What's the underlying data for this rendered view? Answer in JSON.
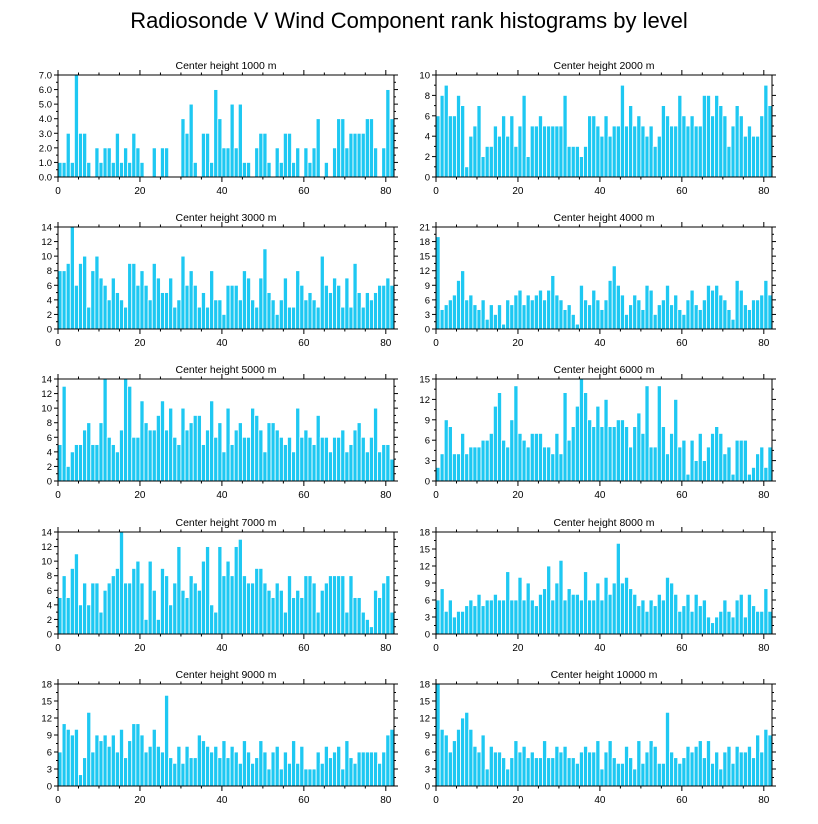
{
  "title": "Radiosonde V Wind Component rank histograms by level",
  "colors": {
    "bar": "#1ec8f2",
    "bar_edge": "#ffffff",
    "axis": "#000000"
  },
  "chart_data": [
    {
      "type": "bar",
      "title": "Center height 1000 m",
      "xlim": [
        0,
        82
      ],
      "ylim": [
        0,
        7
      ],
      "yticks": [
        0,
        1,
        2,
        3,
        4,
        5,
        6,
        7
      ],
      "ytick_labels": [
        "0.0",
        "1.0",
        "2.0",
        "3.0",
        "4.0",
        "5.0",
        "6.0",
        "7.0"
      ],
      "xticks": [
        0,
        20,
        40,
        60,
        80
      ],
      "values": [
        1,
        1,
        3,
        1,
        7,
        3,
        3,
        1,
        0,
        2,
        1,
        2,
        2,
        1,
        3,
        1,
        2,
        1,
        3,
        2,
        1,
        0,
        0,
        2,
        0,
        2,
        2,
        0,
        0,
        0,
        4,
        3,
        5,
        1,
        0,
        3,
        3,
        1,
        6,
        4,
        2,
        2,
        5,
        2,
        5,
        1,
        1,
        0,
        2,
        3,
        3,
        1,
        0,
        2,
        1,
        3,
        3,
        1,
        2,
        0,
        2,
        1,
        2,
        4,
        0,
        1,
        0,
        2,
        4,
        4,
        2,
        3,
        3,
        3,
        3,
        4,
        4,
        2,
        0,
        2,
        6,
        4
      ]
    },
    {
      "type": "bar",
      "title": "Center height 2000 m",
      "xlim": [
        0,
        82
      ],
      "ylim": [
        0,
        10
      ],
      "yticks": [
        0,
        2,
        4,
        6,
        8,
        10
      ],
      "ytick_labels": [
        "0",
        "2",
        "4",
        "6",
        "8",
        "10"
      ],
      "xticks": [
        0,
        20,
        40,
        60,
        80
      ],
      "values": [
        6,
        8,
        9,
        6,
        6,
        8,
        7,
        1,
        4,
        5,
        7,
        2,
        3,
        3,
        5,
        4,
        6,
        4,
        6,
        3,
        5,
        8,
        2,
        5,
        5,
        6,
        5,
        5,
        5,
        5,
        5,
        8,
        3,
        3,
        3,
        2,
        3,
        6,
        6,
        5,
        4,
        6,
        4,
        5,
        5,
        9,
        5,
        7,
        5,
        6,
        5,
        4,
        5,
        3,
        4,
        7,
        6,
        5,
        5,
        8,
        6,
        5,
        6,
        5,
        5,
        8,
        8,
        6,
        8,
        7,
        6,
        3,
        5,
        7,
        6,
        4,
        5,
        4,
        4,
        6,
        9,
        7
      ]
    },
    {
      "type": "bar",
      "title": "Center height 3000 m",
      "xlim": [
        0,
        82
      ],
      "ylim": [
        0,
        14
      ],
      "yticks": [
        0,
        2,
        4,
        6,
        8,
        10,
        12,
        14
      ],
      "ytick_labels": [
        "0",
        "2",
        "4",
        "6",
        "8",
        "10",
        "12",
        "14"
      ],
      "xticks": [
        0,
        20,
        40,
        60,
        80
      ],
      "values": [
        8,
        8,
        9,
        14,
        6,
        9,
        10,
        3,
        8,
        10,
        7,
        6,
        4,
        7,
        5,
        4,
        3,
        9,
        9,
        6,
        8,
        6,
        4,
        9,
        7,
        5,
        5,
        7,
        3,
        4,
        10,
        6,
        8,
        6,
        3,
        5,
        3,
        8,
        4,
        4,
        2,
        6,
        6,
        6,
        4,
        8,
        7,
        4,
        3,
        7,
        11,
        5,
        4,
        2,
        4,
        7,
        3,
        3,
        8,
        6,
        4,
        5,
        4,
        3,
        10,
        6,
        5,
        7,
        6,
        3,
        7,
        3,
        9,
        5,
        3,
        5,
        4,
        5,
        6,
        6,
        7,
        6
      ]
    },
    {
      "type": "bar",
      "title": "Center height 4000 m",
      "xlim": [
        0,
        82
      ],
      "ylim": [
        0,
        21
      ],
      "yticks": [
        0,
        3,
        6,
        9,
        12,
        15,
        18,
        21
      ],
      "ytick_labels": [
        "0",
        "3",
        "6",
        "9",
        "12",
        "15",
        "18",
        "21"
      ],
      "xticks": [
        0,
        20,
        40,
        60,
        80
      ],
      "values": [
        19,
        4,
        5,
        6,
        7,
        10,
        12,
        6,
        7,
        5,
        4,
        6,
        2,
        5,
        3,
        5,
        1,
        6,
        5,
        7,
        8,
        5,
        7,
        6,
        7,
        8,
        6,
        8,
        11,
        7,
        6,
        4,
        5,
        3,
        1,
        9,
        6,
        5,
        8,
        6,
        4,
        6,
        10,
        13,
        9,
        7,
        3,
        5,
        7,
        6,
        4,
        9,
        8,
        3,
        5,
        6,
        9,
        5,
        7,
        4,
        3,
        6,
        8,
        5,
        4,
        6,
        9,
        8,
        9,
        7,
        6,
        4,
        2,
        10,
        8,
        5,
        4,
        6,
        6,
        7,
        10,
        7
      ]
    },
    {
      "type": "bar",
      "title": "Center height 5000 m",
      "xlim": [
        0,
        82
      ],
      "ylim": [
        0,
        14
      ],
      "yticks": [
        0,
        2,
        4,
        6,
        8,
        10,
        12,
        14
      ],
      "ytick_labels": [
        "0",
        "2",
        "4",
        "6",
        "8",
        "10",
        "12",
        "14"
      ],
      "xticks": [
        0,
        20,
        40,
        60,
        80
      ],
      "values": [
        5,
        13,
        2,
        4,
        5,
        5,
        7,
        8,
        5,
        5,
        8,
        14,
        6,
        5,
        4,
        7,
        14,
        13,
        6,
        6,
        11,
        8,
        7,
        7,
        9,
        11,
        7,
        10,
        6,
        5,
        10,
        7,
        8,
        9,
        9,
        5,
        7,
        11,
        6,
        8,
        4,
        10,
        5,
        7,
        8,
        6,
        6,
        10,
        9,
        7,
        4,
        8,
        8,
        7,
        6,
        5,
        6,
        4,
        10,
        6,
        7,
        6,
        5,
        9,
        6,
        6,
        4,
        6,
        6,
        7,
        4,
        5,
        7,
        8,
        6,
        4,
        6,
        10,
        4,
        5,
        5,
        3
      ]
    },
    {
      "type": "bar",
      "title": "Center height 6000 m",
      "xlim": [
        0,
        82
      ],
      "ylim": [
        0,
        15
      ],
      "yticks": [
        0,
        3,
        6,
        9,
        12,
        15
      ],
      "ytick_labels": [
        "0",
        "3",
        "6",
        "9",
        "12",
        "15"
      ],
      "xticks": [
        0,
        20,
        40,
        60,
        80
      ],
      "values": [
        2,
        4,
        9,
        8,
        4,
        4,
        7,
        4,
        5,
        5,
        5,
        6,
        6,
        7,
        11,
        13,
        6,
        5,
        9,
        14,
        7,
        6,
        5,
        7,
        7,
        7,
        5,
        5,
        4,
        7,
        4,
        13,
        6,
        8,
        11,
        15,
        13,
        9,
        8,
        11,
        8,
        12,
        8,
        8,
        9,
        9,
        8,
        5,
        8,
        10,
        7,
        14,
        5,
        5,
        14,
        8,
        4,
        7,
        12,
        5,
        6,
        1,
        6,
        3,
        7,
        3,
        5,
        7,
        8,
        7,
        4,
        5,
        1,
        6,
        6,
        6,
        1,
        2,
        4,
        5,
        2,
        5
      ]
    },
    {
      "type": "bar",
      "title": "Center height 7000 m",
      "xlim": [
        0,
        82
      ],
      "ylim": [
        0,
        14
      ],
      "yticks": [
        0,
        2,
        4,
        6,
        8,
        10,
        12,
        14
      ],
      "ytick_labels": [
        "0",
        "2",
        "4",
        "6",
        "8",
        "10",
        "12",
        "14"
      ],
      "xticks": [
        0,
        20,
        40,
        60,
        80
      ],
      "values": [
        5,
        8,
        5,
        9,
        11,
        4,
        7,
        4,
        7,
        7,
        3,
        6,
        7,
        8,
        9,
        14,
        7,
        7,
        9,
        10,
        7,
        2,
        10,
        6,
        2,
        9,
        8,
        4,
        7,
        12,
        6,
        5,
        8,
        7,
        6,
        10,
        12,
        4,
        3,
        12,
        8,
        10,
        8,
        12,
        13,
        8,
        7,
        7,
        9,
        9,
        7,
        6,
        5,
        7,
        6,
        3,
        8,
        5,
        6,
        5,
        8,
        8,
        7,
        3,
        6,
        7,
        8,
        8,
        8,
        8,
        3,
        8,
        5,
        5,
        3,
        2,
        1,
        6,
        5,
        7,
        8,
        3
      ]
    },
    {
      "type": "bar",
      "title": "Center height 8000 m",
      "xlim": [
        0,
        82
      ],
      "ylim": [
        0,
        18
      ],
      "yticks": [
        0,
        3,
        6,
        9,
        12,
        15,
        18
      ],
      "ytick_labels": [
        "0",
        "3",
        "6",
        "9",
        "12",
        "15",
        "18"
      ],
      "xticks": [
        0,
        20,
        40,
        60,
        80
      ],
      "values": [
        6,
        8,
        4,
        6,
        3,
        4,
        4,
        5,
        6,
        5,
        7,
        5,
        6,
        6,
        7,
        6,
        6,
        11,
        6,
        6,
        10,
        6,
        9,
        6,
        5,
        7,
        8,
        12,
        6,
        9,
        13,
        6,
        8,
        7,
        7,
        6,
        11,
        6,
        6,
        9,
        6,
        10,
        7,
        9,
        16,
        9,
        10,
        8,
        7,
        5,
        6,
        4,
        6,
        5,
        7,
        6,
        10,
        9,
        7,
        4,
        5,
        7,
        4,
        7,
        5,
        6,
        3,
        2,
        3,
        4,
        6,
        4,
        3,
        6,
        7,
        3,
        7,
        5,
        4,
        4,
        8,
        4
      ]
    },
    {
      "type": "bar",
      "title": "Center height 9000 m",
      "xlim": [
        0,
        82
      ],
      "ylim": [
        0,
        18
      ],
      "yticks": [
        0,
        3,
        6,
        9,
        12,
        15,
        18
      ],
      "ytick_labels": [
        "0",
        "3",
        "6",
        "9",
        "12",
        "15",
        "18"
      ],
      "xticks": [
        0,
        20,
        40,
        60,
        80
      ],
      "values": [
        6,
        11,
        10,
        9,
        10,
        2,
        5,
        13,
        6,
        9,
        8,
        9,
        7,
        9,
        6,
        10,
        5,
        8,
        11,
        11,
        9,
        6,
        7,
        10,
        7,
        6,
        16,
        5,
        4,
        7,
        4,
        7,
        5,
        5,
        9,
        8,
        7,
        6,
        7,
        5,
        8,
        5,
        7,
        6,
        4,
        8,
        6,
        4,
        5,
        8,
        6,
        3,
        6,
        7,
        3,
        6,
        4,
        8,
        4,
        7,
        3,
        3,
        3,
        6,
        4,
        7,
        5,
        6,
        7,
        3,
        8,
        5,
        4,
        6,
        6,
        6,
        6,
        6,
        4,
        6,
        9,
        10
      ]
    },
    {
      "type": "bar",
      "title": "Center height 10000 m",
      "xlim": [
        0,
        82
      ],
      "ylim": [
        0,
        18
      ],
      "yticks": [
        0,
        3,
        6,
        9,
        12,
        15,
        18
      ],
      "ytick_labels": [
        "0",
        "3",
        "6",
        "9",
        "12",
        "15",
        "18"
      ],
      "xticks": [
        0,
        20,
        40,
        60,
        80
      ],
      "values": [
        18,
        10,
        9,
        6,
        8,
        10,
        12,
        13,
        10,
        7,
        6,
        9,
        3,
        7,
        6,
        6,
        5,
        3,
        5,
        8,
        6,
        7,
        5,
        6,
        5,
        5,
        8,
        5,
        5,
        7,
        6,
        7,
        5,
        5,
        4,
        6,
        7,
        6,
        6,
        8,
        3,
        6,
        8,
        5,
        4,
        4,
        7,
        5,
        3,
        8,
        4,
        6,
        8,
        7,
        4,
        4,
        13,
        6,
        5,
        4,
        5,
        7,
        6,
        7,
        8,
        5,
        8,
        4,
        6,
        3,
        6,
        7,
        4,
        7,
        6,
        6,
        7,
        5,
        9,
        6,
        10,
        9
      ]
    }
  ]
}
